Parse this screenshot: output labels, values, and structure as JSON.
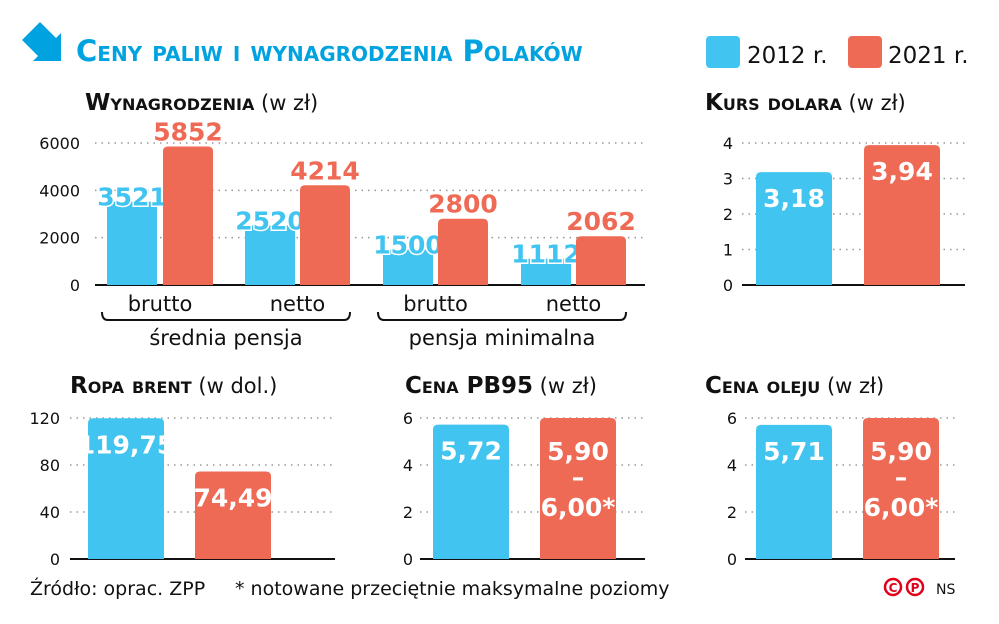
{
  "header": {
    "title": "Ceny paliw i wynagrodzenia Polaków",
    "icon": "arrow-down-right-icon",
    "title_color": "#00A3E0"
  },
  "legend": [
    {
      "label": "2012 r.",
      "color": "#41C4F0"
    },
    {
      "label": "2021 r.",
      "color": "#EE6A55"
    }
  ],
  "footer": {
    "source": "Źródło: oprac. ZPP",
    "note": "* notowane przeciętnie maksymalne poziomy",
    "credit": "NS",
    "logos": [
      "copyright-icon",
      "p-icon"
    ]
  },
  "chart_data": [
    {
      "type": "bar",
      "title": "Wynagrodzenia",
      "unit": "(w zł)",
      "categories": [
        "brutto",
        "netto",
        "brutto",
        "netto"
      ],
      "groups": [
        {
          "label": "średnia pensja",
          "categories": [
            0,
            1
          ]
        },
        {
          "label": "pensja minimalna",
          "categories": [
            2,
            3
          ]
        }
      ],
      "series": [
        {
          "name": "2012 r.",
          "values": [
            3521,
            2520,
            1500,
            1112
          ],
          "labels": [
            "3521",
            "2520",
            "1500",
            "1112"
          ]
        },
        {
          "name": "2021 r.",
          "values": [
            5852,
            4214,
            2800,
            2062
          ],
          "labels": [
            "5852",
            "4214",
            "2800",
            "2062"
          ]
        }
      ],
      "yticks": [
        "0",
        "2000",
        "4000",
        "6000"
      ],
      "ylim": [
        0,
        6000
      ],
      "grid": true
    },
    {
      "type": "bar",
      "title": "Kurs dolara",
      "unit": "(w zł)",
      "series": [
        {
          "name": "2012 r.",
          "values": [
            3.18
          ],
          "labels": [
            "3,18"
          ]
        },
        {
          "name": "2021 r.",
          "values": [
            3.94
          ],
          "labels": [
            "3,94"
          ]
        }
      ],
      "yticks": [
        "0",
        "1",
        "2",
        "3",
        "4"
      ],
      "ylim": [
        0,
        4
      ],
      "grid": true
    },
    {
      "type": "bar",
      "title": "Ropa brent",
      "unit": "(w dol.)",
      "series": [
        {
          "name": "2012 r.",
          "values": [
            119.75
          ],
          "labels": [
            "119,75"
          ]
        },
        {
          "name": "2021 r.",
          "values": [
            74.49
          ],
          "labels": [
            "74,49"
          ]
        }
      ],
      "yticks": [
        "0",
        "40",
        "80",
        "120"
      ],
      "ylim": [
        0,
        120
      ],
      "grid": true
    },
    {
      "type": "bar",
      "title": "Cena PB95",
      "unit": "(w zł)",
      "series": [
        {
          "name": "2012 r.",
          "values": [
            5.72
          ],
          "labels": [
            "5,72"
          ]
        },
        {
          "name": "2021 r.",
          "values": [
            6.0
          ],
          "range": [
            5.9,
            6.0
          ],
          "labels": [
            "5,90|–|6,00*"
          ]
        }
      ],
      "yticks": [
        "0",
        "2",
        "4",
        "6"
      ],
      "ylim": [
        0,
        6
      ],
      "grid": true
    },
    {
      "type": "bar",
      "title": "Cena oleju",
      "unit": "(w zł)",
      "series": [
        {
          "name": "2012 r.",
          "values": [
            5.71
          ],
          "labels": [
            "5,71"
          ]
        },
        {
          "name": "2021 r.",
          "values": [
            6.0
          ],
          "range": [
            5.9,
            6.0
          ],
          "labels": [
            "5,90|–|6,00*"
          ]
        }
      ],
      "yticks": [
        "0",
        "2",
        "4",
        "6"
      ],
      "ylim": [
        0,
        6
      ],
      "grid": true
    }
  ]
}
